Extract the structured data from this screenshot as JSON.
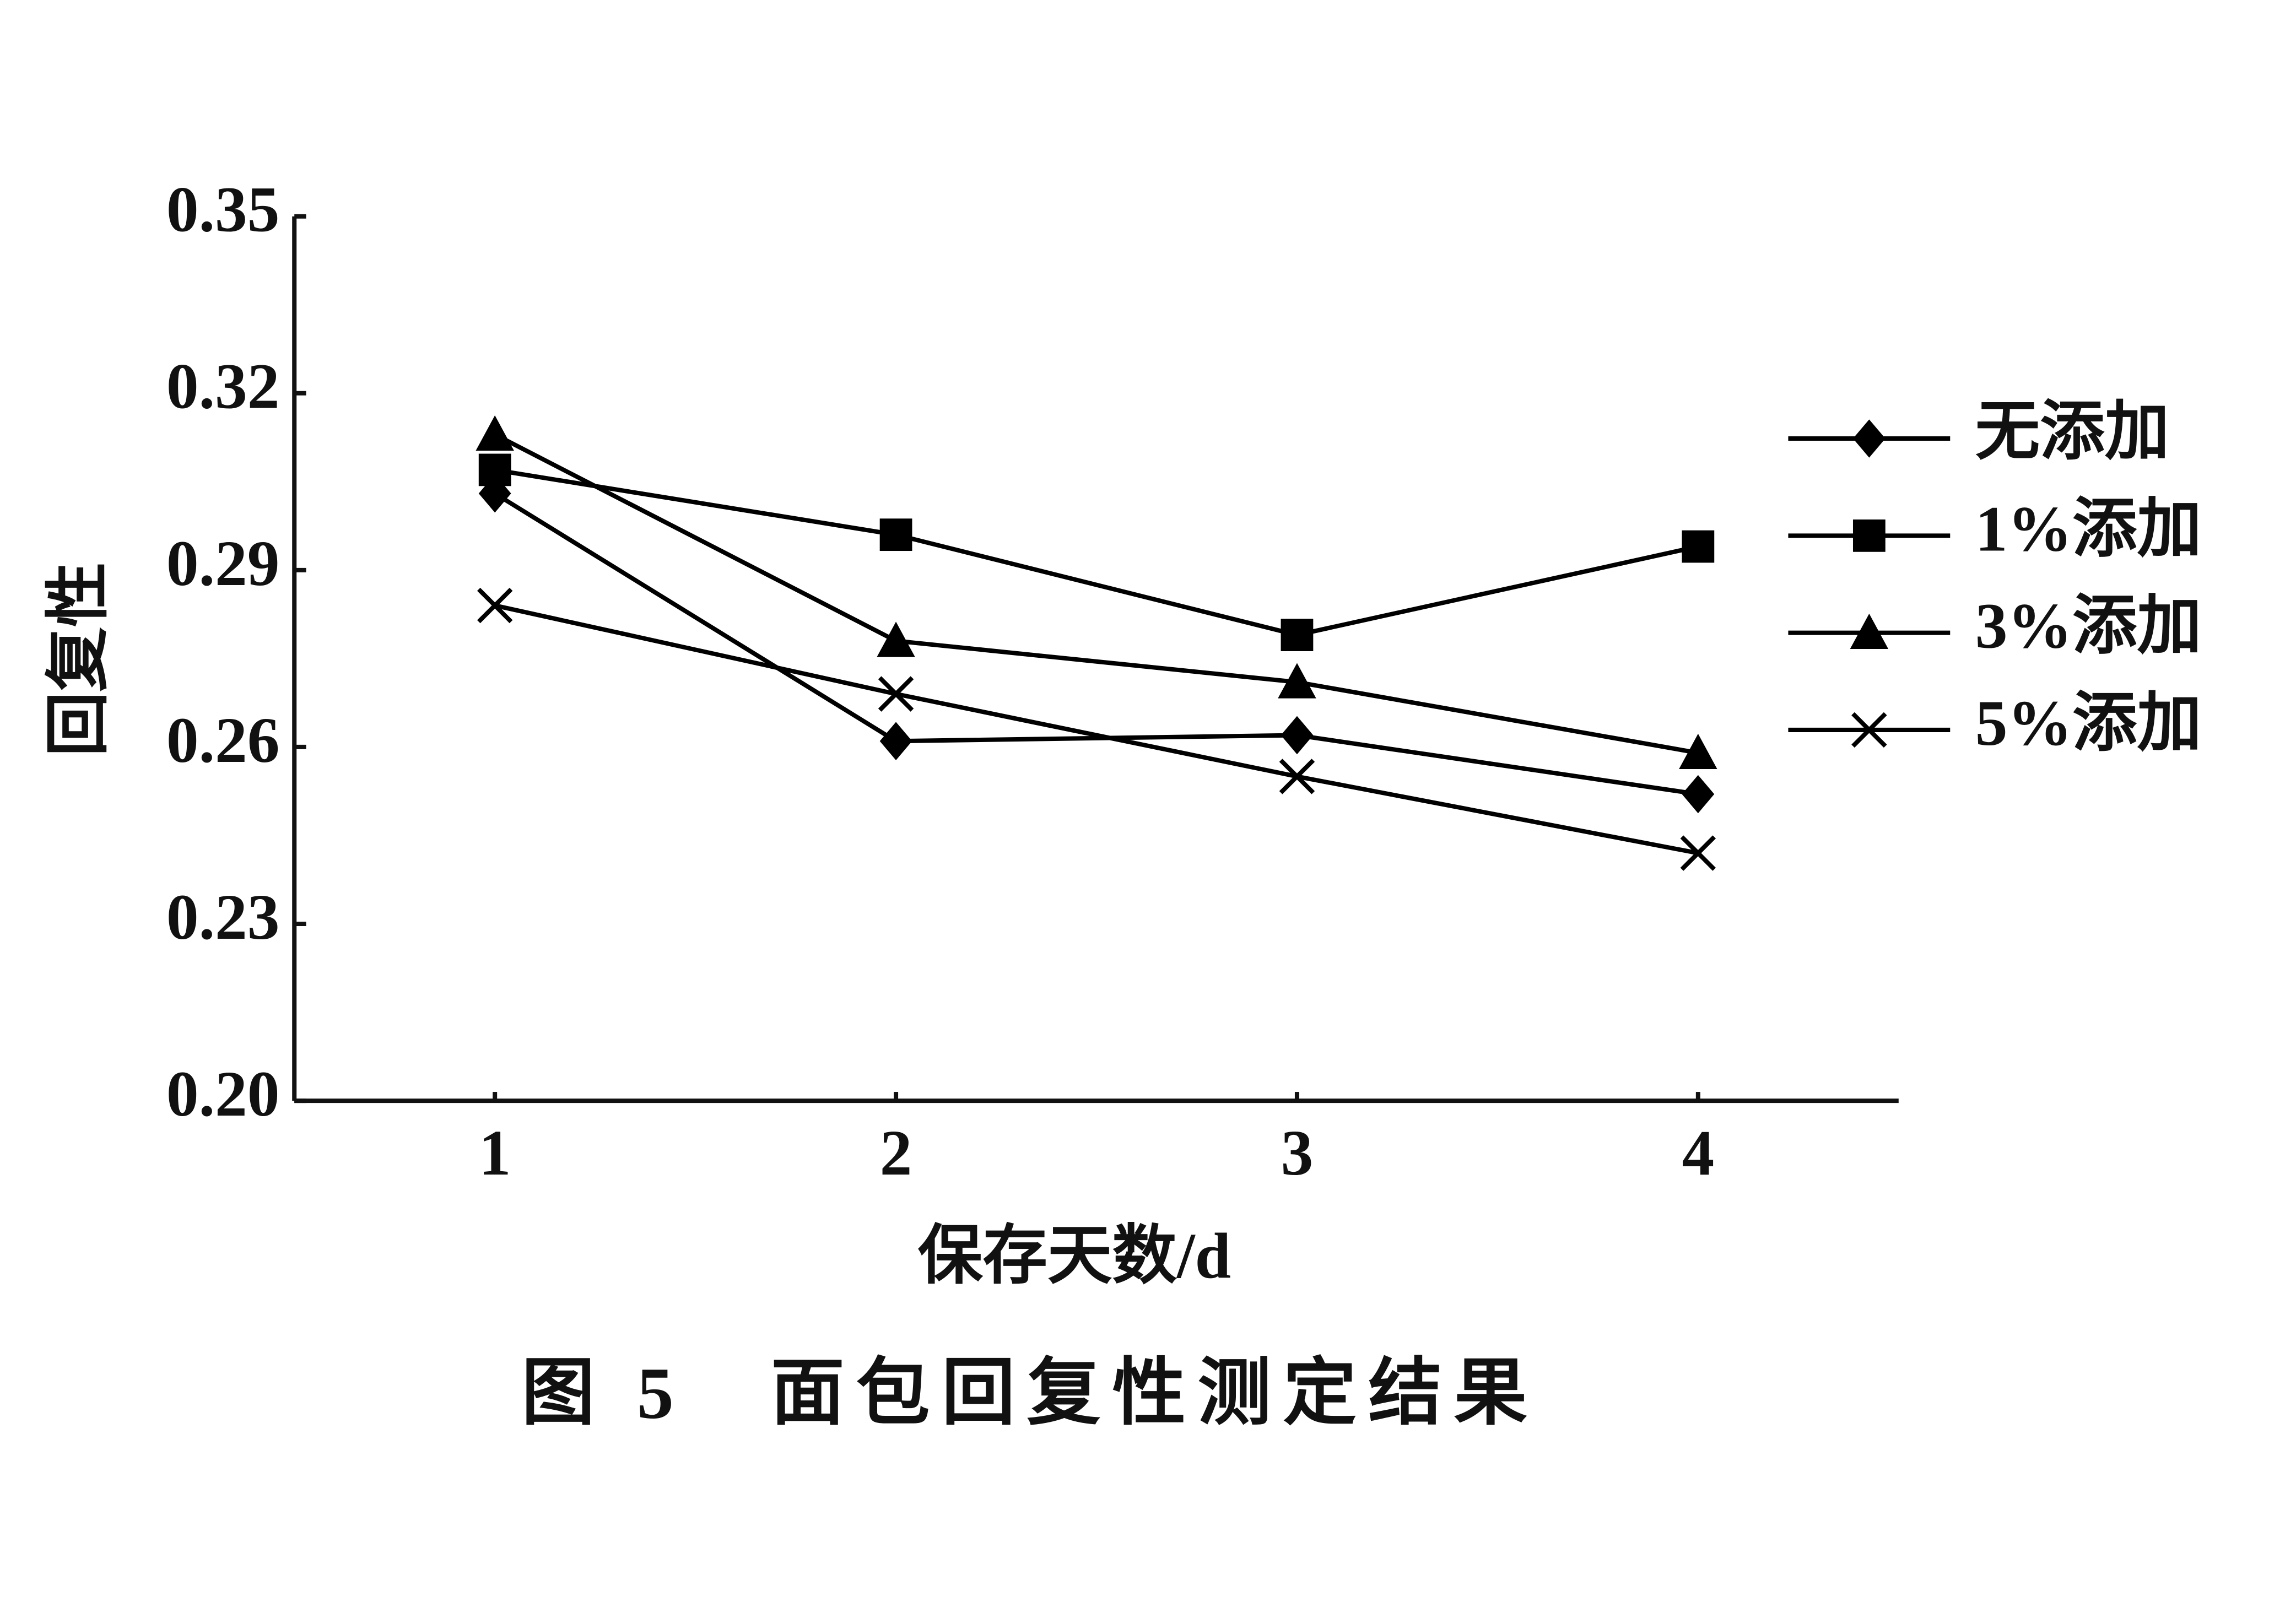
{
  "chart_data": {
    "type": "line",
    "caption": "图 5　面包回复性测定结果",
    "x_label": "保存天数/d",
    "y_label": "回复性",
    "x": [
      1,
      2,
      3,
      4
    ],
    "xlim": [
      0.5,
      4.5
    ],
    "xticks": [
      1,
      2,
      3,
      4
    ],
    "ylim": [
      0.2,
      0.35
    ],
    "yticks": [
      {
        "value": 0.2,
        "label": "0.20"
      },
      0.23,
      0.26,
      0.29,
      0.32,
      0.35
    ],
    "legend": "right",
    "series": [
      {
        "name": "无添加",
        "color": "#000000",
        "marker": "diamond",
        "values": [
          0.303,
          0.261,
          0.262,
          0.252
        ]
      },
      {
        "name": "1%添加",
        "color": "#000000",
        "marker": "square",
        "values": [
          0.307,
          0.296,
          0.279,
          0.294
        ]
      },
      {
        "name": "3%添加",
        "color": "#000000",
        "marker": "triangle",
        "values": [
          0.313,
          0.278,
          0.271,
          0.259
        ]
      },
      {
        "name": "5%添加",
        "color": "#000000",
        "marker": "x",
        "values": [
          0.284,
          0.269,
          0.255,
          0.242
        ]
      }
    ]
  }
}
